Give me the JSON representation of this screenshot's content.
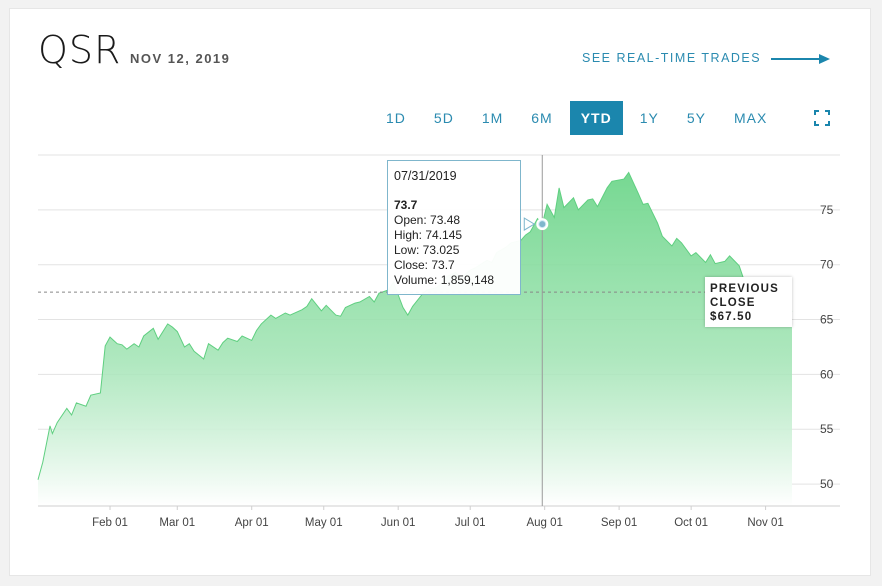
{
  "header": {
    "ticker": "QSR",
    "date": "NOV 12, 2019",
    "realtime_link": "SEE REAL-TIME TRADES"
  },
  "ranges": [
    {
      "label": "1D",
      "active": false
    },
    {
      "label": "5D",
      "active": false
    },
    {
      "label": "1M",
      "active": false
    },
    {
      "label": "6M",
      "active": false
    },
    {
      "label": "YTD",
      "active": true
    },
    {
      "label": "1Y",
      "active": false
    },
    {
      "label": "5Y",
      "active": false
    },
    {
      "label": "MAX",
      "active": false
    }
  ],
  "icons": {
    "expand": "expand-icon",
    "arrow": "arrow-right-icon"
  },
  "colors": {
    "accent": "#1b86ad",
    "area_top": "#6fd68c",
    "area_bottom": "#ffffff",
    "link": "#2b8bb0"
  },
  "tooltip": {
    "date": "07/31/2019",
    "value": "73.7",
    "open": "Open: 73.48",
    "high": "High: 74.145",
    "low": "Low: 73.025",
    "close": "Close: 73.7",
    "volume": "Volume: 1,859,148"
  },
  "previous_close": {
    "line1": "PREVIOUS",
    "line2": "CLOSE",
    "line3": "$67.50",
    "value": 67.5
  },
  "chart_data": {
    "type": "area",
    "title": "",
    "xlabel": "",
    "ylabel": "",
    "ylim": [
      48,
      80
    ],
    "yticks": [
      50,
      55,
      60,
      65,
      70,
      75
    ],
    "xticks": [
      {
        "label": "Feb 01",
        "date": "2019-02-01"
      },
      {
        "label": "Mar 01",
        "date": "2019-03-01"
      },
      {
        "label": "Apr 01",
        "date": "2019-04-01"
      },
      {
        "label": "May 01",
        "date": "2019-05-01"
      },
      {
        "label": "Jun 01",
        "date": "2019-06-01"
      },
      {
        "label": "Jul 01",
        "date": "2019-07-01"
      },
      {
        "label": "Aug 01",
        "date": "2019-08-01"
      },
      {
        "label": "Sep 01",
        "date": "2019-09-01"
      },
      {
        "label": "Oct 01",
        "date": "2019-10-01"
      },
      {
        "label": "Nov 01",
        "date": "2019-11-01"
      }
    ],
    "x_range": [
      "2019-01-02",
      "2019-11-12"
    ],
    "grid": true,
    "hover_date": "2019-07-31",
    "hover_value": 73.7,
    "points": [
      [
        "2019-01-02",
        50.4
      ],
      [
        "2019-01-04",
        52.0
      ],
      [
        "2019-01-07",
        55.3
      ],
      [
        "2019-01-08",
        54.6
      ],
      [
        "2019-01-10",
        55.6
      ],
      [
        "2019-01-14",
        56.9
      ],
      [
        "2019-01-16",
        56.3
      ],
      [
        "2019-01-18",
        57.4
      ],
      [
        "2019-01-22",
        57.1
      ],
      [
        "2019-01-24",
        58.1
      ],
      [
        "2019-01-28",
        58.3
      ],
      [
        "2019-01-30",
        62.6
      ],
      [
        "2019-02-01",
        63.4
      ],
      [
        "2019-02-04",
        62.8
      ],
      [
        "2019-02-06",
        62.7
      ],
      [
        "2019-02-08",
        62.3
      ],
      [
        "2019-02-11",
        62.8
      ],
      [
        "2019-02-13",
        62.5
      ],
      [
        "2019-02-15",
        63.5
      ],
      [
        "2019-02-19",
        64.2
      ],
      [
        "2019-02-21",
        63.2
      ],
      [
        "2019-02-25",
        64.6
      ],
      [
        "2019-02-27",
        64.3
      ],
      [
        "2019-03-01",
        63.9
      ],
      [
        "2019-03-04",
        62.5
      ],
      [
        "2019-03-06",
        62.8
      ],
      [
        "2019-03-08",
        62.1
      ],
      [
        "2019-03-12",
        61.4
      ],
      [
        "2019-03-14",
        62.8
      ],
      [
        "2019-03-18",
        62.2
      ],
      [
        "2019-03-20",
        62.9
      ],
      [
        "2019-03-22",
        63.3
      ],
      [
        "2019-03-26",
        63.0
      ],
      [
        "2019-03-28",
        63.5
      ],
      [
        "2019-04-01",
        63.1
      ],
      [
        "2019-04-03",
        64.0
      ],
      [
        "2019-04-05",
        64.6
      ],
      [
        "2019-04-09",
        65.4
      ],
      [
        "2019-04-11",
        65.1
      ],
      [
        "2019-04-15",
        65.6
      ],
      [
        "2019-04-17",
        65.4
      ],
      [
        "2019-04-22",
        65.9
      ],
      [
        "2019-04-24",
        66.2
      ],
      [
        "2019-04-26",
        66.9
      ],
      [
        "2019-04-30",
        65.8
      ],
      [
        "2019-05-02",
        66.3
      ],
      [
        "2019-05-06",
        65.4
      ],
      [
        "2019-05-08",
        65.3
      ],
      [
        "2019-05-10",
        66.1
      ],
      [
        "2019-05-14",
        66.5
      ],
      [
        "2019-05-16",
        66.6
      ],
      [
        "2019-05-20",
        67.1
      ],
      [
        "2019-05-22",
        66.6
      ],
      [
        "2019-05-24",
        67.4
      ],
      [
        "2019-05-28",
        67.7
      ],
      [
        "2019-05-30",
        68.4
      ],
      [
        "2019-06-03",
        66.1
      ],
      [
        "2019-06-05",
        65.4
      ],
      [
        "2019-06-07",
        66.2
      ],
      [
        "2019-06-11",
        67.3
      ],
      [
        "2019-06-13",
        67.7
      ],
      [
        "2019-06-17",
        67.9
      ],
      [
        "2019-06-19",
        68.3
      ],
      [
        "2019-06-21",
        68.9
      ],
      [
        "2019-06-25",
        69.3
      ],
      [
        "2019-06-27",
        68.8
      ],
      [
        "2019-07-01",
        69.5
      ],
      [
        "2019-07-03",
        69.7
      ],
      [
        "2019-07-08",
        70.4
      ],
      [
        "2019-07-10",
        70.2
      ],
      [
        "2019-07-12",
        71.1
      ],
      [
        "2019-07-16",
        71.6
      ],
      [
        "2019-07-18",
        72.0
      ],
      [
        "2019-07-22",
        72.2
      ],
      [
        "2019-07-24",
        72.7
      ],
      [
        "2019-07-26",
        73.0
      ],
      [
        "2019-07-29",
        74.2
      ],
      [
        "2019-07-31",
        73.7
      ],
      [
        "2019-08-02",
        75.5
      ],
      [
        "2019-08-05",
        74.3
      ],
      [
        "2019-08-07",
        77.0
      ],
      [
        "2019-08-09",
        75.2
      ],
      [
        "2019-08-13",
        76.1
      ],
      [
        "2019-08-15",
        75.0
      ],
      [
        "2019-08-19",
        75.9
      ],
      [
        "2019-08-21",
        76.0
      ],
      [
        "2019-08-23",
        75.3
      ],
      [
        "2019-08-27",
        77.0
      ],
      [
        "2019-08-29",
        77.6
      ],
      [
        "2019-09-03",
        77.8
      ],
      [
        "2019-09-05",
        78.4
      ],
      [
        "2019-09-09",
        76.5
      ],
      [
        "2019-09-11",
        75.5
      ],
      [
        "2019-09-13",
        75.6
      ],
      [
        "2019-09-17",
        73.8
      ],
      [
        "2019-09-19",
        72.6
      ],
      [
        "2019-09-23",
        71.7
      ],
      [
        "2019-09-25",
        72.4
      ],
      [
        "2019-09-27",
        72.0
      ],
      [
        "2019-10-01",
        70.8
      ],
      [
        "2019-10-03",
        71.1
      ],
      [
        "2019-10-07",
        70.2
      ],
      [
        "2019-10-09",
        70.9
      ],
      [
        "2019-10-11",
        70.1
      ],
      [
        "2019-10-15",
        70.3
      ],
      [
        "2019-10-17",
        70.8
      ],
      [
        "2019-10-21",
        69.9
      ],
      [
        "2019-10-23",
        68.6
      ],
      [
        "2019-10-25",
        68.0
      ],
      [
        "2019-10-29",
        67.3
      ],
      [
        "2019-10-31",
        66.0
      ],
      [
        "2019-11-04",
        66.2
      ],
      [
        "2019-11-06",
        65.4
      ],
      [
        "2019-11-08",
        65.2
      ],
      [
        "2019-11-12",
        65.8
      ]
    ]
  }
}
